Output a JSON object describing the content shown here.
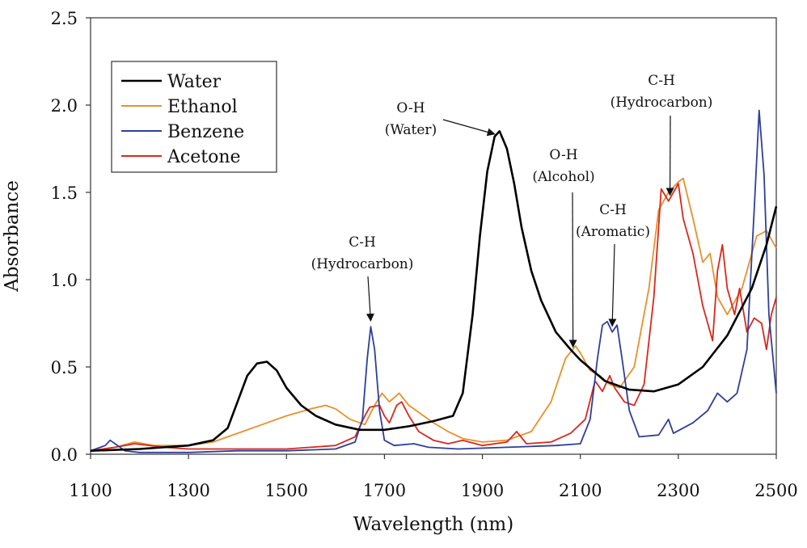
{
  "chart_data": {
    "type": "line",
    "title": "",
    "xlabel": "Wavelength (nm)",
    "ylabel": "Absorbance",
    "xlim": [
      1100,
      2500
    ],
    "ylim": [
      0.0,
      2.5
    ],
    "grid": false,
    "legend_position": "top-left",
    "x_ticks": [
      1100,
      1300,
      1500,
      1700,
      1900,
      2100,
      2300,
      2500
    ],
    "x_tick_labels": [
      "1100",
      "1300",
      "1500",
      "1700",
      "1900",
      "2100",
      "2300",
      "2500"
    ],
    "y_ticks": [
      0.0,
      0.5,
      1.0,
      1.5,
      2.0,
      2.5
    ],
    "y_tick_labels": [
      "0.0",
      "0.5",
      "1.0",
      "1.5",
      "2.0",
      "2.5"
    ],
    "series": [
      {
        "name": "Water",
        "color": "#000000",
        "points": [
          [
            1100,
            0.02
          ],
          [
            1200,
            0.03
          ],
          [
            1300,
            0.05
          ],
          [
            1350,
            0.08
          ],
          [
            1380,
            0.15
          ],
          [
            1400,
            0.3
          ],
          [
            1420,
            0.45
          ],
          [
            1440,
            0.52
          ],
          [
            1460,
            0.53
          ],
          [
            1480,
            0.48
          ],
          [
            1500,
            0.38
          ],
          [
            1530,
            0.28
          ],
          [
            1560,
            0.22
          ],
          [
            1600,
            0.17
          ],
          [
            1650,
            0.14
          ],
          [
            1700,
            0.14
          ],
          [
            1750,
            0.16
          ],
          [
            1800,
            0.19
          ],
          [
            1840,
            0.22
          ],
          [
            1860,
            0.35
          ],
          [
            1880,
            0.8
          ],
          [
            1895,
            1.25
          ],
          [
            1910,
            1.62
          ],
          [
            1925,
            1.82
          ],
          [
            1935,
            1.85
          ],
          [
            1950,
            1.75
          ],
          [
            1965,
            1.55
          ],
          [
            1980,
            1.3
          ],
          [
            2000,
            1.05
          ],
          [
            2020,
            0.88
          ],
          [
            2050,
            0.7
          ],
          [
            2080,
            0.6
          ],
          [
            2100,
            0.54
          ],
          [
            2150,
            0.42
          ],
          [
            2200,
            0.37
          ],
          [
            2250,
            0.36
          ],
          [
            2300,
            0.4
          ],
          [
            2350,
            0.5
          ],
          [
            2400,
            0.68
          ],
          [
            2450,
            0.95
          ],
          [
            2480,
            1.2
          ],
          [
            2500,
            1.42
          ]
        ]
      },
      {
        "name": "Ethanol",
        "color": "#e8902a",
        "points": [
          [
            1100,
            0.02
          ],
          [
            1150,
            0.04
          ],
          [
            1190,
            0.07
          ],
          [
            1230,
            0.05
          ],
          [
            1300,
            0.05
          ],
          [
            1350,
            0.07
          ],
          [
            1400,
            0.12
          ],
          [
            1450,
            0.17
          ],
          [
            1500,
            0.22
          ],
          [
            1550,
            0.26
          ],
          [
            1580,
            0.28
          ],
          [
            1600,
            0.26
          ],
          [
            1630,
            0.2
          ],
          [
            1660,
            0.17
          ],
          [
            1680,
            0.28
          ],
          [
            1695,
            0.35
          ],
          [
            1710,
            0.3
          ],
          [
            1730,
            0.35
          ],
          [
            1750,
            0.28
          ],
          [
            1780,
            0.22
          ],
          [
            1800,
            0.18
          ],
          [
            1830,
            0.13
          ],
          [
            1860,
            0.09
          ],
          [
            1900,
            0.07
          ],
          [
            1950,
            0.08
          ],
          [
            2000,
            0.13
          ],
          [
            2040,
            0.3
          ],
          [
            2070,
            0.55
          ],
          [
            2090,
            0.62
          ],
          [
            2100,
            0.58
          ],
          [
            2120,
            0.48
          ],
          [
            2140,
            0.45
          ],
          [
            2160,
            0.4
          ],
          [
            2180,
            0.38
          ],
          [
            2210,
            0.5
          ],
          [
            2240,
            0.95
          ],
          [
            2260,
            1.4
          ],
          [
            2280,
            1.5
          ],
          [
            2300,
            1.56
          ],
          [
            2310,
            1.58
          ],
          [
            2330,
            1.35
          ],
          [
            2350,
            1.1
          ],
          [
            2365,
            1.15
          ],
          [
            2380,
            0.9
          ],
          [
            2400,
            0.8
          ],
          [
            2430,
            0.95
          ],
          [
            2460,
            1.25
          ],
          [
            2480,
            1.28
          ],
          [
            2500,
            1.18
          ]
        ]
      },
      {
        "name": "Benzene",
        "color": "#2e3f9a",
        "points": [
          [
            1100,
            0.02
          ],
          [
            1130,
            0.05
          ],
          [
            1140,
            0.08
          ],
          [
            1150,
            0.06
          ],
          [
            1170,
            0.02
          ],
          [
            1200,
            0.01
          ],
          [
            1300,
            0.01
          ],
          [
            1400,
            0.02
          ],
          [
            1500,
            0.02
          ],
          [
            1600,
            0.03
          ],
          [
            1640,
            0.07
          ],
          [
            1655,
            0.2
          ],
          [
            1665,
            0.55
          ],
          [
            1672,
            0.73
          ],
          [
            1680,
            0.6
          ],
          [
            1690,
            0.25
          ],
          [
            1700,
            0.08
          ],
          [
            1720,
            0.05
          ],
          [
            1760,
            0.06
          ],
          [
            1790,
            0.04
          ],
          [
            1850,
            0.03
          ],
          [
            1950,
            0.04
          ],
          [
            2050,
            0.05
          ],
          [
            2100,
            0.06
          ],
          [
            2120,
            0.2
          ],
          [
            2135,
            0.55
          ],
          [
            2145,
            0.74
          ],
          [
            2155,
            0.76
          ],
          [
            2165,
            0.7
          ],
          [
            2175,
            0.74
          ],
          [
            2185,
            0.55
          ],
          [
            2200,
            0.25
          ],
          [
            2220,
            0.1
          ],
          [
            2260,
            0.11
          ],
          [
            2280,
            0.2
          ],
          [
            2290,
            0.12
          ],
          [
            2330,
            0.18
          ],
          [
            2360,
            0.25
          ],
          [
            2380,
            0.35
          ],
          [
            2400,
            0.3
          ],
          [
            2420,
            0.35
          ],
          [
            2440,
            0.6
          ],
          [
            2455,
            1.4
          ],
          [
            2465,
            1.97
          ],
          [
            2475,
            1.6
          ],
          [
            2485,
            0.8
          ],
          [
            2495,
            0.5
          ],
          [
            2500,
            0.35
          ]
        ]
      },
      {
        "name": "Acetone",
        "color": "#d9281c",
        "points": [
          [
            1100,
            0.02
          ],
          [
            1150,
            0.04
          ],
          [
            1190,
            0.06
          ],
          [
            1250,
            0.04
          ],
          [
            1300,
            0.03
          ],
          [
            1400,
            0.03
          ],
          [
            1500,
            0.03
          ],
          [
            1600,
            0.05
          ],
          [
            1640,
            0.1
          ],
          [
            1660,
            0.22
          ],
          [
            1670,
            0.27
          ],
          [
            1690,
            0.28
          ],
          [
            1700,
            0.22
          ],
          [
            1710,
            0.18
          ],
          [
            1725,
            0.28
          ],
          [
            1735,
            0.3
          ],
          [
            1750,
            0.22
          ],
          [
            1770,
            0.13
          ],
          [
            1800,
            0.08
          ],
          [
            1830,
            0.06
          ],
          [
            1860,
            0.08
          ],
          [
            1900,
            0.05
          ],
          [
            1950,
            0.07
          ],
          [
            1970,
            0.13
          ],
          [
            1990,
            0.06
          ],
          [
            2040,
            0.07
          ],
          [
            2080,
            0.12
          ],
          [
            2110,
            0.2
          ],
          [
            2130,
            0.42
          ],
          [
            2145,
            0.36
          ],
          [
            2160,
            0.45
          ],
          [
            2170,
            0.38
          ],
          [
            2190,
            0.3
          ],
          [
            2210,
            0.28
          ],
          [
            2230,
            0.4
          ],
          [
            2250,
            0.9
          ],
          [
            2265,
            1.52
          ],
          [
            2280,
            1.45
          ],
          [
            2300,
            1.55
          ],
          [
            2310,
            1.35
          ],
          [
            2330,
            1.15
          ],
          [
            2350,
            0.85
          ],
          [
            2370,
            0.65
          ],
          [
            2380,
            1.05
          ],
          [
            2390,
            1.2
          ],
          [
            2400,
            0.95
          ],
          [
            2415,
            0.8
          ],
          [
            2425,
            0.95
          ],
          [
            2440,
            0.7
          ],
          [
            2455,
            0.78
          ],
          [
            2470,
            0.75
          ],
          [
            2480,
            0.6
          ],
          [
            2490,
            0.8
          ],
          [
            2500,
            0.9
          ]
        ]
      }
    ],
    "annotations": [
      {
        "lines": [
          "C-H",
          "(Hydrocarbon)"
        ],
        "target": [
          1672,
          0.75
        ]
      },
      {
        "lines": [
          "O-H",
          "(Water)"
        ],
        "target": [
          1925,
          1.82
        ]
      },
      {
        "lines": [
          "O-H",
          "(Alcohol)"
        ],
        "target": [
          2085,
          0.6
        ]
      },
      {
        "lines": [
          "C-H",
          "(Aromatic)"
        ],
        "target": [
          2165,
          0.72
        ]
      },
      {
        "lines": [
          "C-H",
          "(Hydrocarbon)"
        ],
        "target": [
          2283,
          1.47
        ]
      }
    ]
  }
}
